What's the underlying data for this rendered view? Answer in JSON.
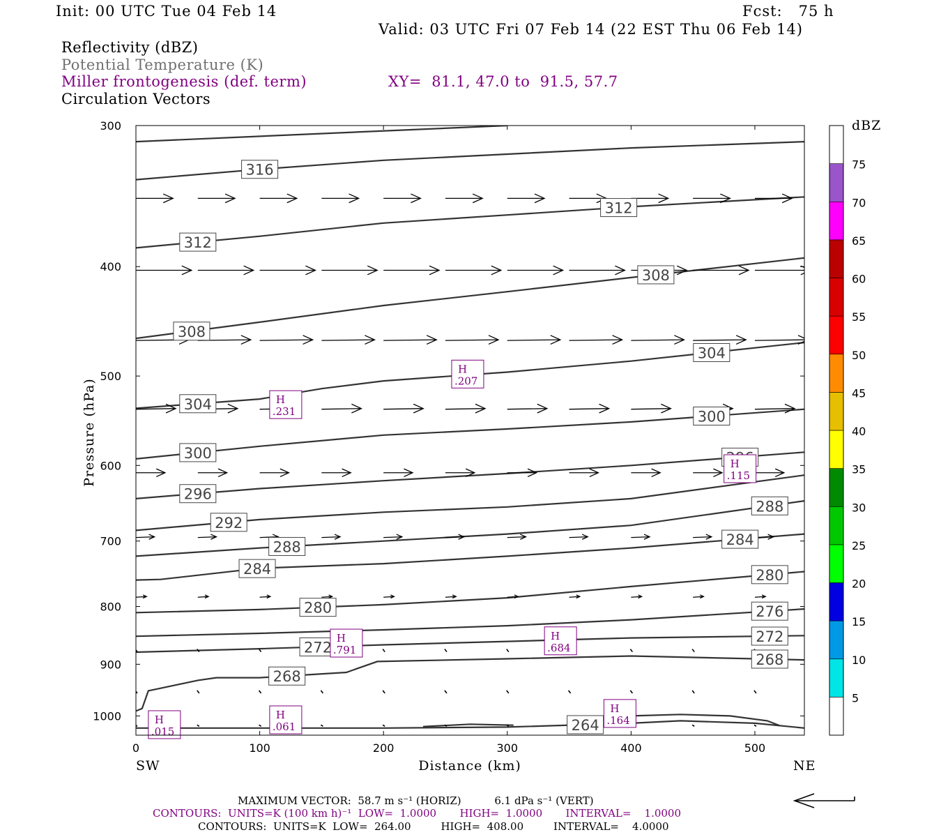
{
  "header": {
    "init": "Init: 00 UTC Tue 04 Feb 14",
    "fcst": "Fcst:   75 h",
    "valid": "Valid: 03 UTC Fri 07 Feb 14 (22 EST Thu 06 Feb 14)"
  },
  "legend": {
    "reflectivity": "Reflectivity (dBZ)",
    "theta": "Potential Temperature (K)",
    "frontogenesis": "Miller frontogenesis (def. term)",
    "xy": "XY=  81.1, 47.0 to  91.5, 57.7",
    "vectors": "Circulation Vectors"
  },
  "axes": {
    "ylabel": "Pressure (hPa)",
    "xlabel": "Distance (km)",
    "left_end": "SW",
    "right_end": "NE"
  },
  "colorbar": {
    "unit": "dBZ",
    "levels": [
      5,
      10,
      15,
      20,
      25,
      30,
      35,
      40,
      45,
      50,
      55,
      60,
      65,
      70,
      75
    ],
    "colors": [
      "#ffffff",
      "#00e5e5",
      "#0099e6",
      "#0000e0",
      "#00ff00",
      "#00c800",
      "#008a00",
      "#ffff00",
      "#e6bf00",
      "#ff8c00",
      "#ff0000",
      "#d90000",
      "#bb0000",
      "#ff00ff",
      "#9955c9",
      "#ffffff"
    ]
  },
  "footer": {
    "max_vector": "MAXIMUM VECTOR:  58.7 m s⁻¹ (HORIZ)          6.1 dPa s⁻¹ (VERT)",
    "contours_front": "CONTOURS:  UNITS=K (100 km h)⁻¹  LOW=  1.0000       HIGH=  1.0000       INTERVAL=    1.0000",
    "contours_theta": "CONTOURS:  UNITS=K  LOW=  264.00         HIGH=  408.00         INTERVAL=    4.0000"
  },
  "chart_data": {
    "type": "line",
    "xlim": [
      0,
      540
    ],
    "ylim": [
      1040,
      300
    ],
    "y_scale": "log-pressure",
    "xticks": [
      0,
      100,
      200,
      300,
      400,
      500
    ],
    "yticks": [
      300,
      400,
      500,
      600,
      700,
      800,
      900,
      1000
    ],
    "isentropes": [
      {
        "value": 316,
        "label": "",
        "pts": [
          [
            0,
            310
          ],
          [
            300,
            300
          ]
        ]
      },
      {
        "value": 316,
        "label": "316",
        "pts": [
          [
            0,
            335
          ],
          [
            100,
            328
          ],
          [
            200,
            322
          ],
          [
            300,
            318
          ],
          [
            400,
            314
          ],
          [
            540,
            310
          ]
        ]
      },
      {
        "value": 312,
        "label": "312",
        "pts": [
          [
            0,
            385
          ],
          [
            100,
            376
          ],
          [
            200,
            366
          ],
          [
            300,
            360
          ],
          [
            400,
            354
          ],
          [
            540,
            347
          ]
        ]
      },
      {
        "value": 308,
        "label": "308",
        "pts": [
          [
            0,
            463
          ],
          [
            100,
            448
          ],
          [
            200,
            433
          ],
          [
            300,
            421
          ],
          [
            400,
            409
          ],
          [
            540,
            393
          ]
        ]
      },
      {
        "value": 304,
        "label": "304",
        "pts": [
          [
            0,
            534
          ],
          [
            100,
            524
          ],
          [
            150,
            513
          ],
          [
            200,
            505
          ],
          [
            300,
            496
          ],
          [
            400,
            485
          ],
          [
            540,
            467
          ]
        ]
      },
      {
        "value": 300,
        "label": "300",
        "pts": [
          [
            0,
            592
          ],
          [
            100,
            577
          ],
          [
            200,
            564
          ],
          [
            300,
            557
          ],
          [
            400,
            549
          ],
          [
            540,
            535
          ]
        ]
      },
      {
        "value": 296,
        "label": "296",
        "pts": [
          [
            0,
            642
          ],
          [
            100,
            629
          ],
          [
            200,
            619
          ],
          [
            300,
            610
          ],
          [
            400,
            600
          ],
          [
            540,
            584
          ]
        ]
      },
      {
        "value": 292,
        "label": "292",
        "pts": [
          [
            0,
            685
          ],
          [
            100,
            670
          ],
          [
            200,
            660
          ],
          [
            300,
            653
          ],
          [
            400,
            642
          ],
          [
            540,
            612
          ]
        ]
      },
      {
        "value": 288,
        "label": "288",
        "pts": [
          [
            0,
            722
          ],
          [
            100,
            710
          ],
          [
            200,
            700
          ],
          [
            300,
            690
          ],
          [
            400,
            678
          ],
          [
            540,
            645
          ]
        ]
      },
      {
        "value": 284,
        "label": "284",
        "pts": [
          [
            0,
            758
          ],
          [
            20,
            757
          ],
          [
            100,
            740
          ],
          [
            200,
            733
          ],
          [
            300,
            722
          ],
          [
            400,
            710
          ],
          [
            540,
            690
          ]
        ]
      },
      {
        "value": 280,
        "label": "280",
        "pts": [
          [
            0,
            810
          ],
          [
            100,
            805
          ],
          [
            200,
            797
          ],
          [
            300,
            786
          ],
          [
            400,
            768
          ],
          [
            540,
            745
          ]
        ]
      },
      {
        "value": 276,
        "label": "276",
        "pts": [
          [
            0,
            850
          ],
          [
            100,
            845
          ],
          [
            200,
            839
          ],
          [
            300,
            832
          ],
          [
            400,
            822
          ],
          [
            540,
            804
          ]
        ]
      },
      {
        "value": 272,
        "label": "272",
        "pts": [
          [
            0,
            878
          ],
          [
            100,
            872
          ],
          [
            200,
            865
          ],
          [
            300,
            859
          ],
          [
            400,
            853
          ],
          [
            540,
            849
          ]
        ]
      },
      {
        "value": 268,
        "label": "268",
        "pts": [
          [
            0,
            990
          ],
          [
            5,
            985
          ],
          [
            10,
            950
          ],
          [
            30,
            940
          ],
          [
            50,
            930
          ],
          [
            65,
            925
          ],
          [
            100,
            925
          ],
          [
            170,
            915
          ],
          [
            195,
            895
          ],
          [
            300,
            890
          ],
          [
            400,
            885
          ],
          [
            540,
            892
          ]
        ]
      },
      {
        "value": 264,
        "label": "264",
        "pts": [
          [
            0,
            1025
          ],
          [
            200,
            1025
          ],
          [
            300,
            1023
          ],
          [
            400,
            1015
          ],
          [
            440,
            1010
          ],
          [
            500,
            1015
          ],
          [
            540,
            1025
          ]
        ]
      },
      {
        "value": 264,
        "label": "",
        "pts": [
          [
            380,
            1010
          ],
          [
            400,
            1000
          ],
          [
            440,
            997
          ],
          [
            480,
            1000
          ],
          [
            510,
            1010
          ],
          [
            520,
            1020
          ]
        ]
      },
      {
        "value": 264,
        "label": "",
        "pts": [
          [
            232,
            1022
          ],
          [
            270,
            1017
          ],
          [
            305,
            1019
          ]
        ]
      }
    ],
    "frontogenesis_maxima": [
      {
        "label": "H",
        "value": ".207",
        "x": 268,
        "p": 498
      },
      {
        "label": "H",
        "value": ".231",
        "x": 121,
        "p": 530
      },
      {
        "label": "H",
        "value": ".115",
        "x": 488,
        "p": 604
      },
      {
        "label": "H",
        "value": ".791",
        "x": 170,
        "p": 862
      },
      {
        "label": "H",
        "value": ".684",
        "x": 343,
        "p": 858
      },
      {
        "label": "H",
        "value": ".164",
        "x": 391,
        "p": 995
      },
      {
        "label": "H",
        "value": ".061",
        "x": 121,
        "p": 1008
      },
      {
        "label": "H",
        "value": ".015",
        "x": 23,
        "p": 1018
      }
    ],
    "vector_levels": [
      {
        "p": 348,
        "u": 28,
        "w": 0
      },
      {
        "p": 403,
        "u": 42,
        "w": 0
      },
      {
        "p": 465,
        "u": 40,
        "w": -1
      },
      {
        "p": 535,
        "u": 30,
        "w": -1
      },
      {
        "p": 609,
        "u": 22,
        "w": 0
      },
      {
        "p": 695,
        "u": 14,
        "w": -1
      },
      {
        "p": 785,
        "u": 8,
        "w": -1
      },
      {
        "p": 875,
        "u": 2,
        "w": 2
      },
      {
        "p": 952,
        "u": 1,
        "w": 2
      },
      {
        "p": 1020,
        "u": 1,
        "w": 1
      }
    ]
  }
}
